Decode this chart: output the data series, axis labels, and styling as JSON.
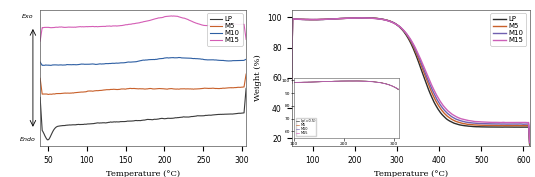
{
  "left": {
    "xlabel": "Temperature (°C)",
    "xlim": [
      40,
      305
    ],
    "xticks": [
      50,
      100,
      150,
      200,
      250,
      300
    ],
    "colors": {
      "LP": "#3a3a3a",
      "M5": "#c8602a",
      "M10": "#2e5fa3",
      "M15": "#d45db5"
    },
    "exo_label": "Exo→",
    "endo_label": "←Endo"
  },
  "right": {
    "xlabel": "Temperature (°C)",
    "ylabel": "Weight (%)",
    "xlim": [
      50,
      615
    ],
    "ylim": [
      15,
      105
    ],
    "xticks": [
      100,
      200,
      300,
      400,
      500,
      600
    ],
    "yticks": [
      20,
      40,
      60,
      80,
      100
    ],
    "colors": {
      "LP": "#2c2c2c",
      "M5": "#c8602a",
      "M10": "#7060b0",
      "M15": "#cc60b8"
    }
  },
  "bg_color": "#ffffff",
  "legend_labels": [
    "LP",
    "M5",
    "M10",
    "M15"
  ]
}
